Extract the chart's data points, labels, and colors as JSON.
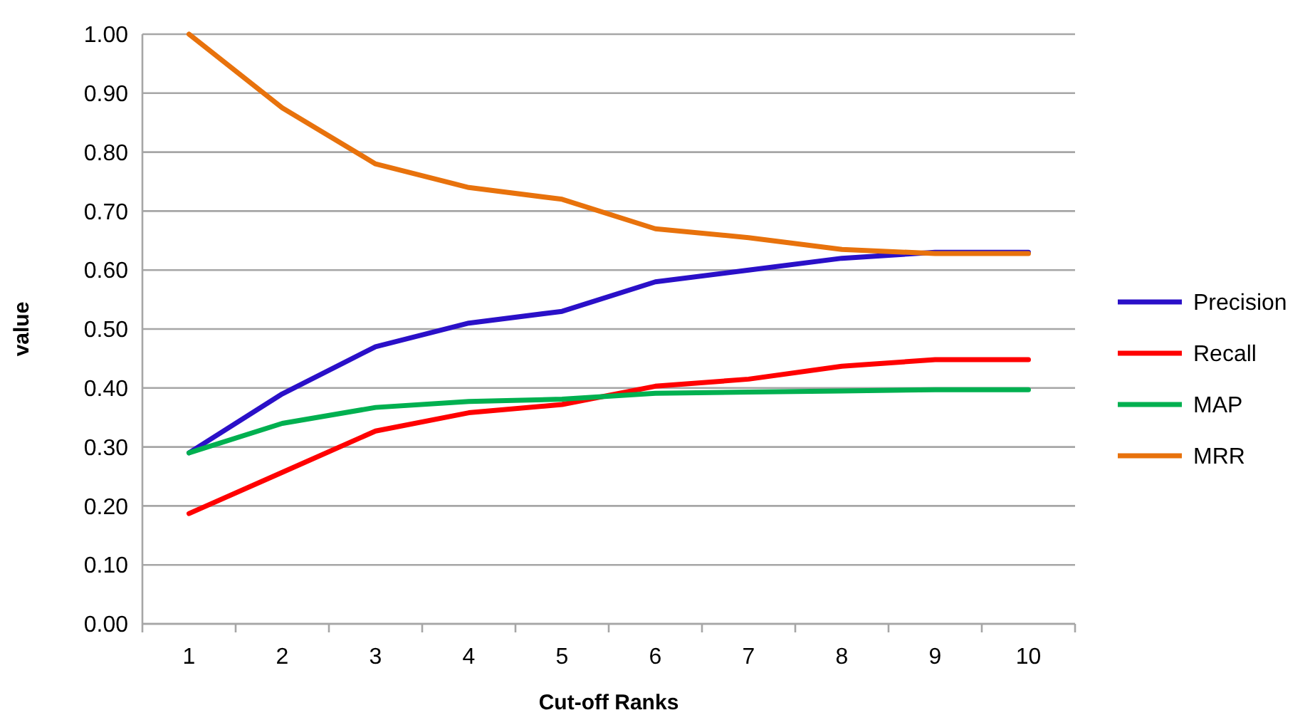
{
  "chart_data": {
    "type": "line",
    "xlabel": "Cut-off Ranks",
    "ylabel": "value",
    "categories": [
      "1",
      "2",
      "3",
      "4",
      "5",
      "6",
      "7",
      "8",
      "9",
      "10"
    ],
    "series": [
      {
        "name": "Precision",
        "color": "#2a10c8",
        "values": [
          0.29,
          0.39,
          0.47,
          0.51,
          0.53,
          0.58,
          0.6,
          0.62,
          0.63,
          0.63
        ]
      },
      {
        "name": "Recall",
        "color": "#ff0000",
        "values": [
          0.187,
          0.257,
          0.327,
          0.358,
          0.372,
          0.403,
          0.415,
          0.437,
          0.448,
          0.448
        ]
      },
      {
        "name": "MAP",
        "color": "#00b050",
        "values": [
          0.29,
          0.34,
          0.367,
          0.377,
          0.381,
          0.391,
          0.393,
          0.395,
          0.397,
          0.397
        ]
      },
      {
        "name": "MRR",
        "color": "#e8720c",
        "values": [
          1.0,
          0.875,
          0.78,
          0.74,
          0.72,
          0.67,
          0.655,
          0.635,
          0.628,
          0.628
        ]
      }
    ],
    "ylim": [
      0,
      1
    ],
    "yticks": [
      {
        "value": 0,
        "label": "0.00"
      },
      {
        "value": 0.1,
        "label": "0.10"
      },
      {
        "value": 0.2,
        "label": "0.20"
      },
      {
        "value": 0.3,
        "label": "0.30"
      },
      {
        "value": 0.4,
        "label": "0.40"
      },
      {
        "value": 0.5,
        "label": "0.50"
      },
      {
        "value": 0.6,
        "label": "0.60"
      },
      {
        "value": 0.7,
        "label": "0.70"
      },
      {
        "value": 0.8,
        "label": "0.80"
      },
      {
        "value": 0.9,
        "label": "0.90"
      },
      {
        "value": 1.0,
        "label": "1.00"
      }
    ],
    "grid": "y",
    "legend": "right",
    "marker": "none",
    "line_style": "solid"
  }
}
